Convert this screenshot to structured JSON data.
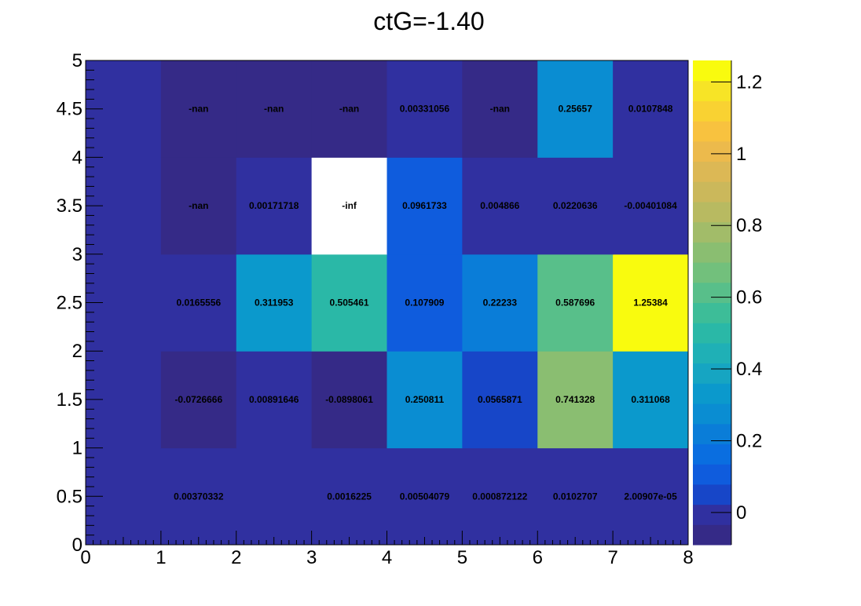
{
  "chart_data": {
    "type": "heatmap",
    "title": "ctG=-1.40",
    "xlabel": "",
    "ylabel": "",
    "xlim": [
      0,
      8
    ],
    "ylim": [
      0,
      5
    ],
    "zlim": [
      -0.09,
      1.26
    ],
    "x_edges": [
      0,
      1,
      2,
      3,
      4,
      5,
      6,
      7,
      8
    ],
    "y_edges": [
      0,
      1,
      2,
      3,
      4,
      5
    ],
    "x_ticks": [
      "0",
      "1",
      "2",
      "3",
      "4",
      "5",
      "6",
      "7",
      "8"
    ],
    "y_ticks": [
      "0",
      "0.5",
      "1",
      "1.5",
      "2",
      "2.5",
      "3",
      "3.5",
      "4",
      "4.5",
      "5"
    ],
    "z_ticks": [
      "0",
      "0.2",
      "0.4",
      "0.6",
      "0.8",
      "1",
      "1.2"
    ],
    "grid": false,
    "legend": "color bar right",
    "palette": [
      "#352a87",
      "#3030a0",
      "#1746c8",
      "#0f5cdd",
      "#0a6ee0",
      "#0a7dd8",
      "#0a8dd2",
      "#0b99cc",
      "#16a5c2",
      "#1fb0b6",
      "#2ab8a7",
      "#3dbd98",
      "#58bf8a",
      "#72c07c",
      "#8abe71",
      "#a2bc69",
      "#b8ba61",
      "#cbb85b",
      "#dcb855",
      "#ecba4c",
      "#f8c23f",
      "#f9d232",
      "#f7e426",
      "#f9fb0e"
    ],
    "nan_color": "#352a87",
    "inf_color": "#ffffff",
    "rows": [
      {
        "y_bin": 0,
        "values": [
          0.003,
          0.00370332,
          0.001,
          0.0016225,
          0.00504079,
          0.000872122,
          0.0102707,
          2.00907e-05
        ],
        "labels": [
          "",
          "0.00370332",
          "",
          "0.0016225",
          "0.00504079",
          "0.000872122",
          "0.0102707",
          "2.00907e-05"
        ]
      },
      {
        "y_bin": 1,
        "values": [
          0.003,
          -0.0726666,
          0.00891646,
          -0.0898061,
          0.250811,
          0.0565871,
          0.741328,
          0.311068
        ],
        "labels": [
          "",
          "-0.0726666",
          "0.00891646",
          "-0.0898061",
          "0.250811",
          "0.0565871",
          "0.741328",
          "0.311068"
        ]
      },
      {
        "y_bin": 2,
        "values": [
          0.003,
          0.0165556,
          0.311953,
          0.505461,
          0.107909,
          0.22233,
          0.587696,
          1.25384
        ],
        "labels": [
          "",
          "0.0165556",
          "0.311953",
          "0.505461",
          "0.107909",
          "0.22233",
          "0.587696",
          "1.25384"
        ]
      },
      {
        "y_bin": 3,
        "values": [
          0.003,
          "nan",
          0.00171718,
          "-inf",
          0.0961733,
          0.004866,
          0.0220636,
          -0.00401084
        ],
        "labels": [
          "",
          "-nan",
          "0.00171718",
          "-inf",
          "0.0961733",
          "0.004866",
          "0.0220636",
          "-0.00401084"
        ]
      },
      {
        "y_bin": 4,
        "values": [
          0.003,
          "nan",
          "nan",
          "nan",
          0.00331056,
          "nan",
          0.25657,
          0.0107848
        ],
        "labels": [
          "",
          "-nan",
          "-nan",
          "-nan",
          "0.00331056",
          "-nan",
          "0.25657",
          "0.0107848"
        ]
      }
    ]
  }
}
